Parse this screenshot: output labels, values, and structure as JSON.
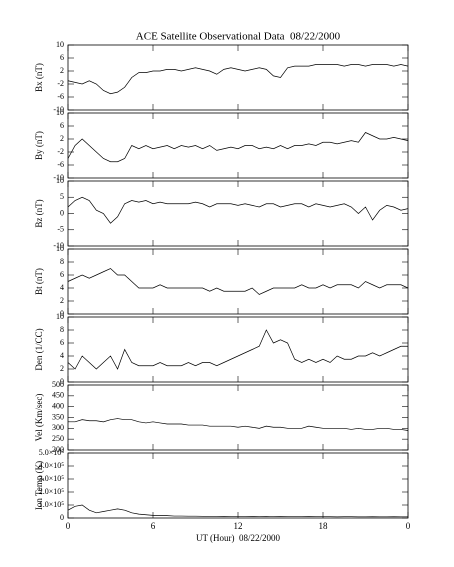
{
  "chart_data": [
    {
      "type": "line",
      "title": "ACE Satellite Observational Data  08/22/2000",
      "ylabel": "Bx (nT)",
      "xlim": [
        0,
        24
      ],
      "ylim": [
        -10,
        10
      ],
      "yticks": [
        -10,
        -6,
        -2,
        2,
        6,
        10
      ],
      "color": "#000000",
      "x": [
        0,
        0.5,
        1,
        1.5,
        2,
        2.5,
        3,
        3.5,
        4,
        4.5,
        5,
        5.5,
        6,
        6.5,
        7,
        7.5,
        8,
        8.5,
        9,
        9.5,
        10,
        10.5,
        11,
        11.5,
        12,
        12.5,
        13,
        13.5,
        14,
        14.5,
        15,
        15.5,
        16,
        16.5,
        17,
        17.5,
        18,
        18.5,
        19,
        19.5,
        20,
        20.5,
        21,
        21.5,
        22,
        22.5,
        23,
        23.5,
        24
      ],
      "values": [
        -1,
        -1.5,
        -2,
        -1,
        -2,
        -4,
        -5,
        -4.5,
        -3,
        0,
        1.5,
        1.5,
        2,
        2,
        2.5,
        2.5,
        2,
        2.5,
        3,
        2.5,
        2,
        1,
        2.5,
        3,
        2.5,
        2,
        2.5,
        3,
        2.5,
        0.5,
        0,
        3,
        3.5,
        3.5,
        3.5,
        4,
        4,
        4,
        4,
        3.5,
        4,
        4,
        3.5,
        4,
        4,
        4,
        3.5,
        4,
        3.5
      ]
    },
    {
      "type": "line",
      "ylabel": "By (nT)",
      "xlim": [
        0,
        24
      ],
      "ylim": [
        -10,
        10
      ],
      "yticks": [
        -10,
        -6,
        -2,
        2,
        6,
        10
      ],
      "color": "#000000",
      "x": [
        0,
        0.5,
        1,
        1.5,
        2,
        2.5,
        3,
        3.5,
        4,
        4.5,
        5,
        5.5,
        6,
        6.5,
        7,
        7.5,
        8,
        8.5,
        9,
        9.5,
        10,
        10.5,
        11,
        11.5,
        12,
        12.5,
        13,
        13.5,
        14,
        14.5,
        15,
        15.5,
        16,
        16.5,
        17,
        17.5,
        18,
        18.5,
        19,
        19.5,
        20,
        20.5,
        21,
        21.5,
        22,
        22.5,
        23,
        23.5,
        24
      ],
      "values": [
        -4,
        0,
        2,
        0,
        -2,
        -4,
        -5,
        -5,
        -4,
        0,
        -1,
        0,
        -1,
        -0.5,
        0,
        -1,
        0,
        -0.5,
        0,
        -1,
        0,
        -1.5,
        -1,
        -0.5,
        -1,
        0,
        0,
        -1,
        -0.5,
        -1,
        0,
        -1,
        0,
        0,
        0.5,
        0,
        1,
        1,
        0.5,
        1,
        1.5,
        1,
        4,
        3,
        2,
        2,
        2.5,
        2,
        1.5
      ]
    },
    {
      "type": "line",
      "ylabel": "Bz (nT)",
      "xlim": [
        0,
        24
      ],
      "ylim": [
        -10,
        10
      ],
      "yticks": [
        -10,
        -5,
        0,
        5,
        10
      ],
      "color": "#000000",
      "x": [
        0,
        0.5,
        1,
        1.5,
        2,
        2.5,
        3,
        3.5,
        4,
        4.5,
        5,
        5.5,
        6,
        6.5,
        7,
        7.5,
        8,
        8.5,
        9,
        9.5,
        10,
        10.5,
        11,
        11.5,
        12,
        12.5,
        13,
        13.5,
        14,
        14.5,
        15,
        15.5,
        16,
        16.5,
        17,
        17.5,
        18,
        18.5,
        19,
        19.5,
        20,
        20.5,
        21,
        21.5,
        22,
        22.5,
        23,
        23.5,
        24
      ],
      "values": [
        2,
        4,
        5,
        4,
        1,
        0,
        -3,
        -1,
        3,
        4,
        3.5,
        4,
        3,
        3.5,
        3,
        3,
        3,
        3,
        3.5,
        3,
        2,
        3,
        3,
        3,
        2.5,
        3,
        2.5,
        2,
        3,
        3,
        2,
        2.5,
        3,
        3,
        2,
        3,
        2.5,
        2,
        2.5,
        3,
        2,
        0,
        2,
        -2,
        1,
        2.5,
        2,
        1,
        1.5
      ]
    },
    {
      "type": "line",
      "ylabel": "Bt (nT)",
      "xlim": [
        0,
        24
      ],
      "ylim": [
        0,
        10
      ],
      "yticks": [
        0,
        2,
        4,
        6,
        8,
        10
      ],
      "color": "#000000",
      "x": [
        0,
        0.5,
        1,
        1.5,
        2,
        2.5,
        3,
        3.5,
        4,
        4.5,
        5,
        5.5,
        6,
        6.5,
        7,
        7.5,
        8,
        8.5,
        9,
        9.5,
        10,
        10.5,
        11,
        11.5,
        12,
        12.5,
        13,
        13.5,
        14,
        14.5,
        15,
        15.5,
        16,
        16.5,
        17,
        17.5,
        18,
        18.5,
        19,
        19.5,
        20,
        20.5,
        21,
        21.5,
        22,
        22.5,
        23,
        23.5,
        24
      ],
      "values": [
        5,
        5.5,
        6,
        5.5,
        6,
        6.5,
        7,
        6,
        6,
        5,
        4,
        4,
        4,
        4.5,
        4,
        4,
        4,
        4,
        4,
        4,
        3.5,
        4,
        3.5,
        3.5,
        3.5,
        3.5,
        4,
        3,
        3.5,
        4,
        4,
        4,
        4,
        4.5,
        4,
        4,
        4.5,
        4,
        4.5,
        4.5,
        4.5,
        4,
        5,
        4.5,
        4,
        4.5,
        4.5,
        4.5,
        4
      ]
    },
    {
      "type": "line",
      "ylabel": "Den (1/CC)",
      "xlim": [
        0,
        24
      ],
      "ylim": [
        0,
        10
      ],
      "yticks": [
        0,
        2,
        4,
        6,
        8,
        10
      ],
      "color": "#000000",
      "x": [
        0,
        0.5,
        1,
        1.5,
        2,
        2.5,
        3,
        3.5,
        4,
        4.5,
        5,
        5.5,
        6,
        6.5,
        7,
        7.5,
        8,
        8.5,
        9,
        9.5,
        10,
        10.5,
        11,
        11.5,
        12,
        12.5,
        13,
        13.5,
        14,
        14.5,
        15,
        15.5,
        16,
        16.5,
        17,
        17.5,
        18,
        18.5,
        19,
        19.5,
        20,
        20.5,
        21,
        21.5,
        22,
        22.5,
        23,
        23.5,
        24
      ],
      "values": [
        3,
        2,
        4,
        3,
        2,
        3,
        4,
        2,
        5,
        3,
        2.5,
        2.5,
        2.5,
        3,
        2.5,
        2.5,
        2.5,
        3,
        2.5,
        3,
        3,
        2.5,
        3,
        3.5,
        4,
        4.5,
        5,
        5.5,
        8,
        6,
        6.5,
        6,
        3.5,
        3,
        3.5,
        3,
        3.5,
        3,
        4,
        3.5,
        3.5,
        4,
        4,
        4.5,
        4,
        4.5,
        5,
        5.5,
        5.5
      ]
    },
    {
      "type": "line",
      "ylabel": "Vel (Km/sec)",
      "xlim": [
        0,
        24
      ],
      "ylim": [
        200,
        500
      ],
      "yticks": [
        200,
        250,
        300,
        350,
        400,
        450,
        500
      ],
      "color": "#000000",
      "x": [
        0,
        0.5,
        1,
        1.5,
        2,
        2.5,
        3,
        3.5,
        4,
        4.5,
        5,
        5.5,
        6,
        6.5,
        7,
        7.5,
        8,
        8.5,
        9,
        9.5,
        10,
        10.5,
        11,
        11.5,
        12,
        12.5,
        13,
        13.5,
        14,
        14.5,
        15,
        15.5,
        16,
        16.5,
        17,
        17.5,
        18,
        18.5,
        19,
        19.5,
        20,
        20.5,
        21,
        21.5,
        22,
        22.5,
        23,
        23.5,
        24
      ],
      "values": [
        330,
        330,
        340,
        335,
        335,
        330,
        340,
        345,
        340,
        340,
        330,
        325,
        330,
        325,
        320,
        320,
        320,
        315,
        315,
        315,
        310,
        310,
        310,
        310,
        305,
        310,
        305,
        300,
        310,
        305,
        305,
        300,
        300,
        300,
        310,
        305,
        300,
        300,
        300,
        300,
        295,
        300,
        295,
        295,
        300,
        300,
        295,
        295,
        290
      ]
    },
    {
      "type": "line",
      "ylabel": "Ion Temp (K)",
      "xlabel": "UT (Hour)  08/22/2000",
      "xlim": [
        0,
        24
      ],
      "xticks": [
        0,
        6,
        12,
        18,
        {
          "value": 24,
          "label": "0"
        }
      ],
      "ylim": [
        0,
        500000
      ],
      "yticks": [
        0,
        {
          "value": 100000,
          "label": "1.0×10⁵"
        },
        {
          "value": 200000,
          "label": "2.0×10⁵"
        },
        {
          "value": 300000,
          "label": "3.0×10⁵"
        },
        {
          "value": 400000,
          "label": "4.0×10⁵"
        },
        {
          "value": 500000,
          "label": "5.0×10⁵"
        }
      ],
      "color": "#000000",
      "x": [
        0,
        0.5,
        1,
        1.5,
        2,
        2.5,
        3,
        3.5,
        4,
        4.5,
        5,
        5.5,
        6,
        6.5,
        7,
        7.5,
        8,
        8.5,
        9,
        9.5,
        10,
        10.5,
        11,
        11.5,
        12,
        12.5,
        13,
        13.5,
        14,
        14.5,
        15,
        15.5,
        16,
        16.5,
        17,
        17.5,
        18,
        18.5,
        19,
        19.5,
        20,
        20.5,
        21,
        21.5,
        22,
        22.5,
        23,
        23.5,
        24
      ],
      "values": [
        60000,
        90000,
        100000,
        60000,
        40000,
        50000,
        60000,
        70000,
        60000,
        40000,
        30000,
        25000,
        20000,
        20000,
        18000,
        15000,
        15000,
        14000,
        14000,
        13000,
        12000,
        12000,
        13000,
        12000,
        12000,
        11000,
        12000,
        11000,
        12000,
        10000,
        11000,
        10000,
        10000,
        10000,
        11000,
        10000,
        10000,
        10000,
        9000,
        10000,
        10000,
        9000,
        9000,
        10000,
        9000,
        9000,
        10000,
        9000,
        9000
      ]
    }
  ]
}
